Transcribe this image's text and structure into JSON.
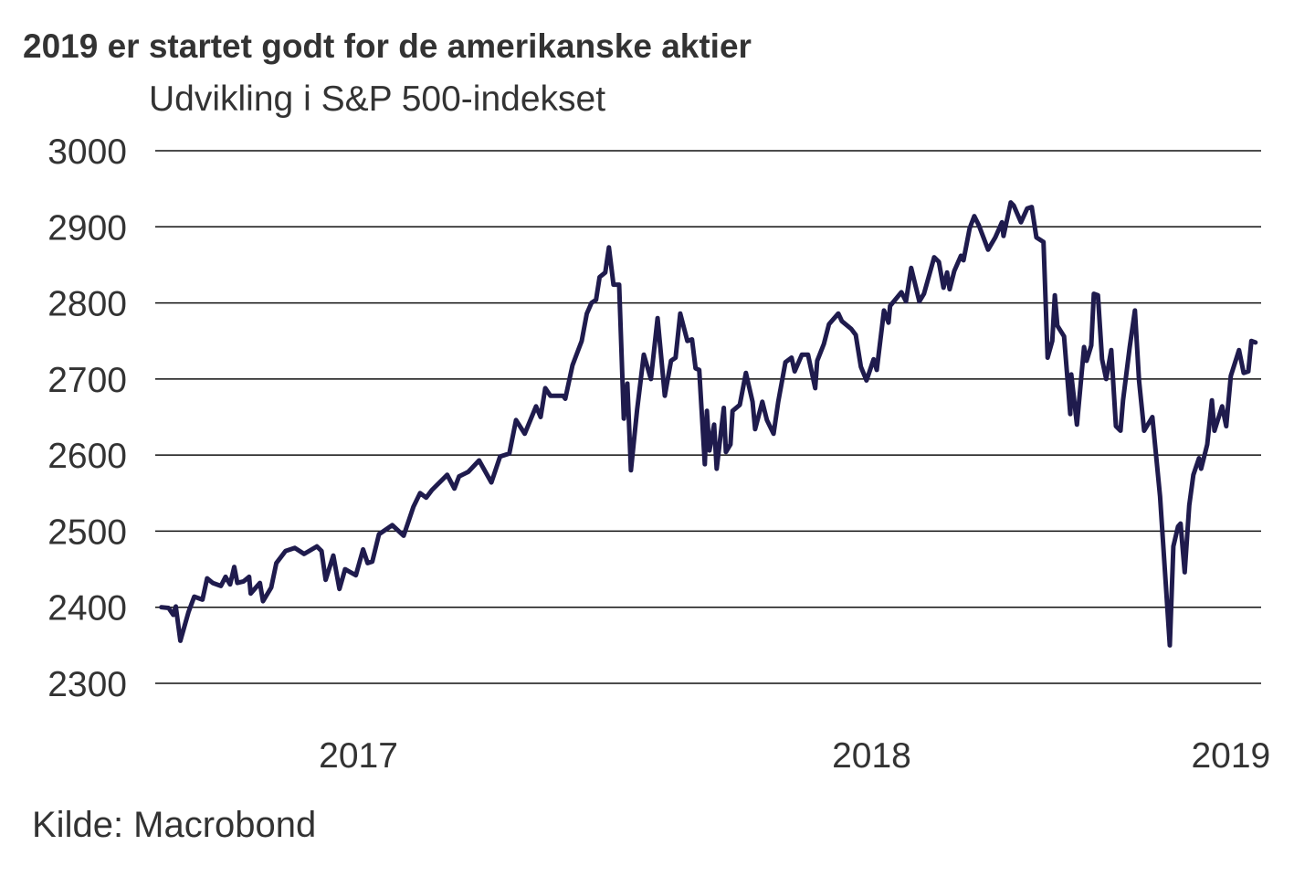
{
  "chart_data": {
    "type": "line",
    "title": "2019 er startet godt for de amerikanske aktier",
    "subtitle": "Udvikling i S&P 500-indekset",
    "source": "Kilde: Macrobond",
    "xlabel": "",
    "ylabel": "",
    "ylim": [
      2300,
      3000
    ],
    "xlim": [
      2017.104,
      2019.259
    ],
    "yticks": [
      2300,
      2400,
      2500,
      2600,
      2700,
      2800,
      2900,
      3000
    ],
    "ytick_labels": [
      "2300",
      "2400",
      "2500",
      "2600",
      "2700",
      "2800",
      "2900",
      "3000"
    ],
    "xticks": [
      2017.5,
      2018.5,
      2019.2
    ],
    "xtick_labels": [
      "2017",
      "2018",
      "2019"
    ],
    "grid": true,
    "legend": "none",
    "line_color": "#1f1b4d",
    "series": [
      {
        "name": "S&P 500",
        "points": [
          [
            2017.116,
            2400
          ],
          [
            2017.13,
            2399
          ],
          [
            2017.139,
            2390
          ],
          [
            2017.144,
            2401
          ],
          [
            2017.153,
            2356
          ],
          [
            2017.169,
            2394
          ],
          [
            2017.18,
            2414
          ],
          [
            2017.196,
            2410
          ],
          [
            2017.205,
            2438
          ],
          [
            2017.216,
            2432
          ],
          [
            2017.232,
            2428
          ],
          [
            2017.241,
            2440
          ],
          [
            2017.25,
            2430
          ],
          [
            2017.258,
            2453
          ],
          [
            2017.264,
            2432
          ],
          [
            2017.276,
            2434
          ],
          [
            2017.287,
            2440
          ],
          [
            2017.29,
            2418
          ],
          [
            2017.308,
            2432
          ],
          [
            2017.314,
            2408
          ],
          [
            2017.33,
            2426
          ],
          [
            2017.34,
            2458
          ],
          [
            2017.358,
            2474
          ],
          [
            2017.376,
            2478
          ],
          [
            2017.394,
            2470
          ],
          [
            2017.419,
            2480
          ],
          [
            2017.428,
            2474
          ],
          [
            2017.436,
            2436
          ],
          [
            2017.451,
            2468
          ],
          [
            2017.463,
            2424
          ],
          [
            2017.474,
            2450
          ],
          [
            2017.495,
            2442
          ],
          [
            2017.509,
            2476
          ],
          [
            2017.518,
            2458
          ],
          [
            2017.527,
            2460
          ],
          [
            2017.54,
            2496
          ],
          [
            2017.566,
            2508
          ],
          [
            2017.588,
            2494
          ],
          [
            2017.607,
            2532
          ],
          [
            2017.62,
            2550
          ],
          [
            2017.632,
            2544
          ],
          [
            2017.643,
            2554
          ],
          [
            2017.673,
            2574
          ],
          [
            2017.687,
            2556
          ],
          [
            2017.696,
            2572
          ],
          [
            2017.714,
            2578
          ],
          [
            2017.735,
            2593
          ],
          [
            2017.759,
            2564
          ],
          [
            2017.776,
            2598
          ],
          [
            2017.794,
            2602
          ],
          [
            2017.807,
            2646
          ],
          [
            2017.824,
            2628
          ],
          [
            2017.846,
            2664
          ],
          [
            2017.855,
            2650
          ],
          [
            2017.864,
            2688
          ],
          [
            2017.874,
            2678
          ],
          [
            2017.899,
            2678
          ],
          [
            2017.903,
            2674
          ],
          [
            2017.917,
            2718
          ],
          [
            2017.935,
            2750
          ],
          [
            2017.945,
            2786
          ],
          [
            2017.954,
            2800
          ],
          [
            2017.963,
            2804
          ],
          [
            2017.97,
            2834
          ],
          [
            2017.981,
            2840
          ],
          [
            2017.988,
            2873
          ],
          [
            2017.997,
            2824
          ],
          [
            2018.008,
            2824
          ],
          [
            2018.017,
            2648
          ],
          [
            2018.024,
            2694
          ],
          [
            2018.031,
            2580
          ],
          [
            2018.043,
            2660
          ],
          [
            2018.056,
            2732
          ],
          [
            2018.07,
            2700
          ],
          [
            2018.083,
            2780
          ],
          [
            2018.097,
            2678
          ],
          [
            2018.109,
            2724
          ],
          [
            2018.118,
            2728
          ],
          [
            2018.127,
            2786
          ],
          [
            2018.141,
            2750
          ],
          [
            2018.15,
            2752
          ],
          [
            2018.157,
            2714
          ],
          [
            2018.164,
            2712
          ],
          [
            2018.175,
            2588
          ],
          [
            2018.179,
            2658
          ],
          [
            2018.184,
            2606
          ],
          [
            2018.193,
            2640
          ],
          [
            2018.198,
            2582
          ],
          [
            2018.212,
            2662
          ],
          [
            2018.216,
            2604
          ],
          [
            2018.225,
            2614
          ],
          [
            2018.229,
            2658
          ],
          [
            2018.243,
            2666
          ],
          [
            2018.255,
            2708
          ],
          [
            2018.268,
            2670
          ],
          [
            2018.273,
            2634
          ],
          [
            2018.287,
            2670
          ],
          [
            2018.296,
            2646
          ],
          [
            2018.309,
            2628
          ],
          [
            2018.318,
            2670
          ],
          [
            2018.332,
            2722
          ],
          [
            2018.344,
            2728
          ],
          [
            2018.35,
            2710
          ],
          [
            2018.364,
            2732
          ],
          [
            2018.376,
            2732
          ],
          [
            2018.39,
            2688
          ],
          [
            2018.394,
            2724
          ],
          [
            2018.407,
            2746
          ],
          [
            2018.417,
            2772
          ],
          [
            2018.435,
            2786
          ],
          [
            2018.442,
            2776
          ],
          [
            2018.46,
            2766
          ],
          [
            2018.469,
            2758
          ],
          [
            2018.479,
            2716
          ],
          [
            2018.49,
            2698
          ],
          [
            2018.504,
            2726
          ],
          [
            2018.51,
            2712
          ],
          [
            2018.524,
            2790
          ],
          [
            2018.533,
            2774
          ],
          [
            2018.536,
            2796
          ],
          [
            2018.558,
            2814
          ],
          [
            2018.567,
            2802
          ],
          [
            2018.577,
            2846
          ],
          [
            2018.593,
            2802
          ],
          [
            2018.602,
            2812
          ],
          [
            2018.622,
            2860
          ],
          [
            2018.631,
            2854
          ],
          [
            2018.64,
            2820
          ],
          [
            2018.647,
            2840
          ],
          [
            2018.652,
            2818
          ],
          [
            2018.661,
            2842
          ],
          [
            2018.674,
            2862
          ],
          [
            2018.679,
            2856
          ],
          [
            2018.691,
            2898
          ],
          [
            2018.7,
            2914
          ],
          [
            2018.709,
            2902
          ],
          [
            2018.727,
            2870
          ],
          [
            2018.741,
            2886
          ],
          [
            2018.754,
            2906
          ],
          [
            2018.757,
            2888
          ],
          [
            2018.771,
            2932
          ],
          [
            2018.777,
            2928
          ],
          [
            2018.791,
            2906
          ],
          [
            2018.803,
            2924
          ],
          [
            2018.812,
            2926
          ],
          [
            2018.821,
            2886
          ],
          [
            2018.835,
            2880
          ],
          [
            2018.843,
            2728
          ],
          [
            2018.852,
            2750
          ],
          [
            2018.857,
            2810
          ],
          [
            2018.862,
            2770
          ],
          [
            2018.875,
            2756
          ],
          [
            2018.887,
            2654
          ],
          [
            2018.889,
            2706
          ],
          [
            2018.9,
            2640
          ],
          [
            2018.914,
            2742
          ],
          [
            2018.919,
            2724
          ],
          [
            2018.928,
            2744
          ],
          [
            2018.933,
            2812
          ],
          [
            2018.941,
            2810
          ],
          [
            2018.949,
            2726
          ],
          [
            2018.957,
            2700
          ],
          [
            2018.967,
            2738
          ],
          [
            2018.976,
            2638
          ],
          [
            2018.985,
            2632
          ],
          [
            2018.99,
            2672
          ],
          [
            2019.003,
            2742
          ],
          [
            2019.013,
            2790
          ],
          [
            2019.021,
            2698
          ],
          [
            2019.031,
            2632
          ],
          [
            2019.047,
            2650
          ],
          [
            2019.062,
            2546
          ],
          [
            2019.081,
            2350
          ],
          [
            2019.088,
            2480
          ],
          [
            2019.097,
            2506
          ],
          [
            2019.102,
            2510
          ],
          [
            2019.11,
            2446
          ],
          [
            2019.119,
            2534
          ],
          [
            2019.127,
            2574
          ],
          [
            2019.138,
            2596
          ],
          [
            2019.142,
            2582
          ],
          [
            2019.154,
            2614
          ],
          [
            2019.163,
            2672
          ],
          [
            2019.168,
            2632
          ],
          [
            2019.183,
            2664
          ],
          [
            2019.191,
            2638
          ],
          [
            2019.2,
            2704
          ],
          [
            2019.216,
            2738
          ],
          [
            2019.225,
            2708
          ],
          [
            2019.234,
            2710
          ],
          [
            2019.24,
            2750
          ],
          [
            2019.248,
            2748
          ]
        ]
      }
    ]
  }
}
